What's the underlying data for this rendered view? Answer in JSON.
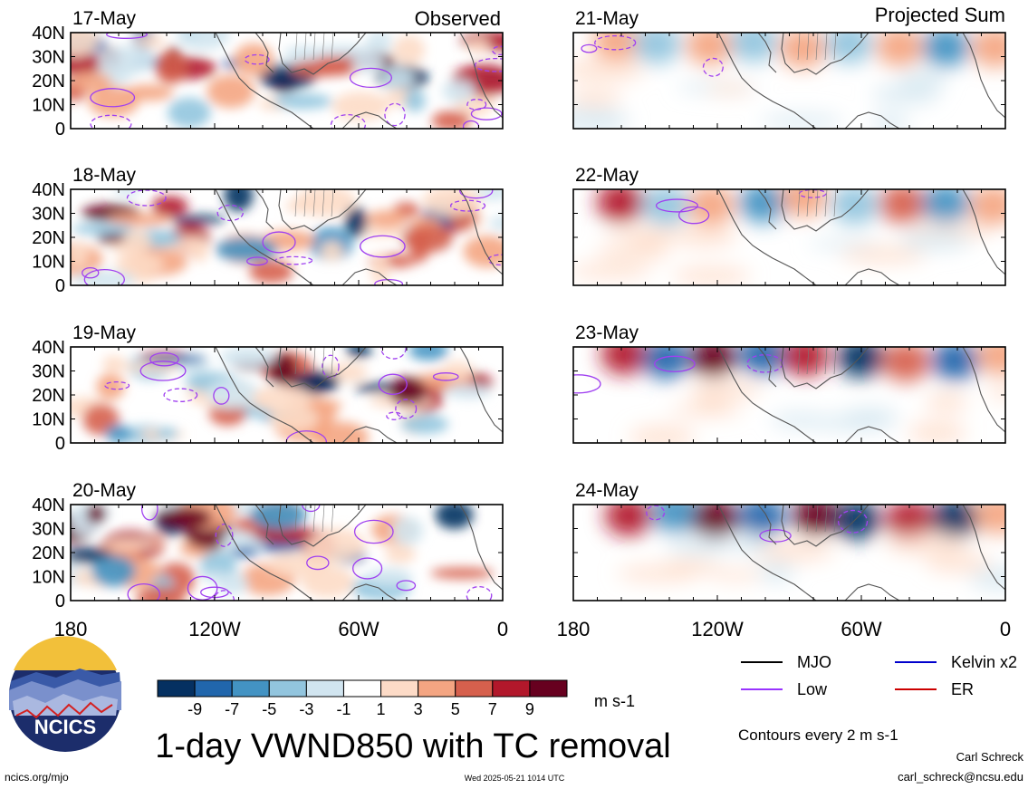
{
  "figure": {
    "title": "1-day VWND850 with TC removal",
    "subtitle": "Contours every 2 m s-1",
    "site": "ncics.org/mjo",
    "timestamp": "Wed 2025-05-21 1014 UTC",
    "author": "Carl Schreck",
    "email": "carl_schreck@ncsu.edu",
    "logo_text": "NCICS"
  },
  "columns": {
    "left": "Observed",
    "right": "Projected Sum"
  },
  "panels": [
    {
      "date": "17-May",
      "kind": "observed"
    },
    {
      "date": "18-May",
      "kind": "observed"
    },
    {
      "date": "19-May",
      "kind": "observed"
    },
    {
      "date": "20-May",
      "kind": "observed"
    },
    {
      "date": "21-May",
      "kind": "projected"
    },
    {
      "date": "22-May",
      "kind": "projected"
    },
    {
      "date": "23-May",
      "kind": "projected"
    },
    {
      "date": "24-May",
      "kind": "projected"
    }
  ],
  "axes": {
    "lat_labels": [
      "40N",
      "30N",
      "20N",
      "10N",
      "0"
    ],
    "lon_labels": [
      "180",
      "120W",
      "60W",
      "0"
    ]
  },
  "colorbar": {
    "unit": "m s-1",
    "tick_labels": [
      "-9",
      "-7",
      "-5",
      "-3",
      "-1",
      "1",
      "3",
      "5",
      "7",
      "9"
    ],
    "colors": [
      "#053061",
      "#2166ac",
      "#4393c3",
      "#92c5de",
      "#d1e5f0",
      "#ffffff",
      "#fddbc7",
      "#f4a582",
      "#d6604d",
      "#b2182b",
      "#67001f"
    ]
  },
  "legend": [
    {
      "label": "MJO",
      "color": "#000000"
    },
    {
      "label": "Kelvin x2",
      "color": "#0000cc"
    },
    {
      "label": "Low",
      "color": "#9933ff"
    },
    {
      "label": "ER",
      "color": "#cc0000"
    }
  ]
}
